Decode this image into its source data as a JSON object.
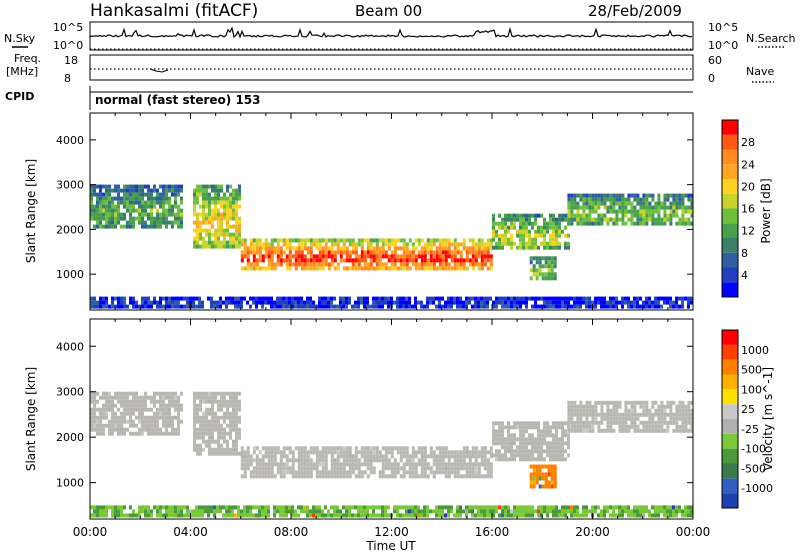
{
  "header": {
    "station": "Hankasalmi (fitACF)",
    "beam": "Beam 00",
    "date": "28/Feb/2009"
  },
  "params": {
    "nsky_label": "N.Sky",
    "nsky_ticks": [
      "10^5",
      "10^0"
    ],
    "nsearch_label": "N.Search",
    "nsearch_ticks": [
      "10^5",
      "10^0"
    ],
    "freq_label": "Freq.",
    "freq_unit": "[MHz]",
    "freq_ticks": [
      "18",
      "8"
    ],
    "nave_label": "Nave",
    "nave_ticks": [
      "60",
      "0"
    ],
    "cpid_label": "CPID",
    "cpid_text": "normal (fast stereo) 153"
  },
  "colors": {
    "power_scale": [
      "#0000ff",
      "#1f3fbf",
      "#2f5fa0",
      "#3a7f6a",
      "#48a04a",
      "#6fbf3f",
      "#c8d22a",
      "#ffd21f",
      "#ffa51f",
      "#ff8a1f",
      "#ff5a12",
      "#ff0000"
    ],
    "velocity_scale": [
      "#1f3fb0",
      "#2f5fbf",
      "#3b7a4a",
      "#4a9a3a",
      "#7ac83a",
      "#b0b0b0",
      "#c8c8c8",
      "#ffe000",
      "#ffb000",
      "#ff8000",
      "#ff4000",
      "#ff0000"
    ],
    "ground_scatter": "#b8b8b0"
  },
  "chart_data": [
    {
      "type": "heatmap",
      "name": "power",
      "ylabel": "Slant Range [km]",
      "yticks": [
        "1000",
        "2000",
        "3000",
        "4000"
      ],
      "ylim": [
        200,
        4600
      ],
      "xlim": [
        "00:00",
        "00:00"
      ],
      "colorbar_label": "Power [dB]",
      "colorbar_ticks": [
        "4",
        "8",
        "12",
        "16",
        "20",
        "24",
        "28"
      ],
      "bands": [
        {
          "t0": 0.0,
          "t1": 3.6,
          "r_bot": 2050,
          "r_top": 3000,
          "level": 0.35
        },
        {
          "t0": 4.1,
          "t1": 6.0,
          "r_bot": 1600,
          "r_top": 3000,
          "level": 0.55
        },
        {
          "t0": 6.0,
          "t1": 16.0,
          "r_bot": 1150,
          "r_top": 1800,
          "level": 0.8
        },
        {
          "t0": 16.0,
          "t1": 19.0,
          "r_bot": 1550,
          "r_top": 2350,
          "level": 0.45
        },
        {
          "t0": 17.5,
          "t1": 18.5,
          "r_bot": 950,
          "r_top": 1400,
          "level": 0.4
        },
        {
          "t0": 19.0,
          "t1": 24.0,
          "r_bot": 2100,
          "r_top": 2800,
          "level": 0.4
        },
        {
          "t0": 0.0,
          "t1": 24.0,
          "r_bot": 250,
          "r_top": 500,
          "level": 0.1
        }
      ]
    },
    {
      "type": "heatmap",
      "name": "velocity",
      "ylabel": "Slant Range [km]",
      "yticks": [
        "1000",
        "2000",
        "3000",
        "4000"
      ],
      "ylim": [
        200,
        4600
      ],
      "xlabel": "Time UT",
      "xticks": [
        "00:00",
        "04:00",
        "08:00",
        "12:00",
        "16:00",
        "20:00",
        "00:00"
      ],
      "colorbar_label": "Velocity [m s^-1]",
      "colorbar_ticks": [
        "1000",
        "500",
        "100",
        "25",
        "-25",
        "-100",
        "-500",
        "-1000"
      ],
      "bands": [
        {
          "t0": 0.0,
          "t1": 3.6,
          "r_bot": 2050,
          "r_top": 3000,
          "level": 0.5
        },
        {
          "t0": 4.1,
          "t1": 6.0,
          "r_bot": 1600,
          "r_top": 3000,
          "level": 0.5
        },
        {
          "t0": 6.0,
          "t1": 16.0,
          "r_bot": 1150,
          "r_top": 1800,
          "level": 0.5
        },
        {
          "t0": 16.0,
          "t1": 19.0,
          "r_bot": 1550,
          "r_top": 2350,
          "level": 0.5
        },
        {
          "t0": 17.5,
          "t1": 18.5,
          "r_bot": 950,
          "r_top": 1400,
          "level": 0.8
        },
        {
          "t0": 19.0,
          "t1": 24.0,
          "r_bot": 2100,
          "r_top": 2800,
          "level": 0.5
        },
        {
          "t0": 0.0,
          "t1": 24.0,
          "r_bot": 250,
          "r_top": 500,
          "level": 0.35
        }
      ]
    }
  ]
}
